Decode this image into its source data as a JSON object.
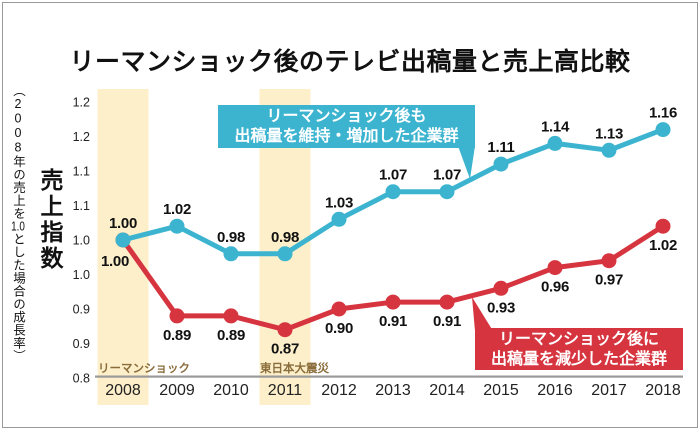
{
  "chart_data": {
    "type": "line",
    "title": "リーマンショック後のテレビ出稿量と売上高比較",
    "categories": [
      "2008",
      "2009",
      "2010",
      "2011",
      "2012",
      "2013",
      "2014",
      "2015",
      "2016",
      "2017",
      "2018"
    ],
    "series": [
      {
        "name": "リーマンショック後も出稿量を維持・増加した企業群",
        "color_key": "maintained",
        "label_position": "above",
        "values": [
          1.0,
          1.02,
          0.98,
          0.98,
          1.03,
          1.07,
          1.07,
          1.11,
          1.14,
          1.13,
          1.16
        ]
      },
      {
        "name": "リーマンショック後に出稿量を減少した企業群",
        "color_key": "decreased",
        "label_position": "below",
        "values": [
          1.0,
          0.89,
          0.89,
          0.87,
          0.9,
          0.91,
          0.91,
          0.93,
          0.96,
          0.97,
          1.02
        ]
      }
    ],
    "ylim": [
      0.8,
      1.2
    ],
    "y_ticks": {
      "values": [
        1.2,
        1.15,
        1.1,
        1.05,
        1.0,
        0.95,
        0.9,
        0.85,
        0.8
      ],
      "labels": [
        "1.2",
        "1.2",
        "1.1",
        "1.1",
        "1.0",
        "1.0",
        "0.9",
        "0.9",
        "0.8"
      ]
    },
    "highlight_bands": [
      {
        "category": "2008",
        "label": "リーマンショック"
      },
      {
        "category": "2011",
        "label": "東日本大震災"
      }
    ],
    "grid": false,
    "legend_position": "callouts-on-plot",
    "xlabel": "",
    "ylabel": "売上指数"
  },
  "y_axis": {
    "title": "売上指数",
    "note": {
      "p1": "（",
      "num": "2008",
      "p2": "年の売上を",
      "combine": "1.0",
      "p3": "とした場合の成長率）"
    }
  },
  "annotations": {
    "blue_callout_line1": "リーマンショック後も",
    "blue_callout_line2": "出稿量を維持・増加した企業群",
    "red_callout_line1": "リーマンショック後に",
    "red_callout_line2": "出稿量を減少した企業群"
  },
  "colors": {
    "maintained": "#3cb4d0",
    "decreased": "#d6343f",
    "band": "#fcefca",
    "band_label_text": "#8a6d3b",
    "axis_line": "#9a9a9a",
    "frame_border": "#999999"
  }
}
